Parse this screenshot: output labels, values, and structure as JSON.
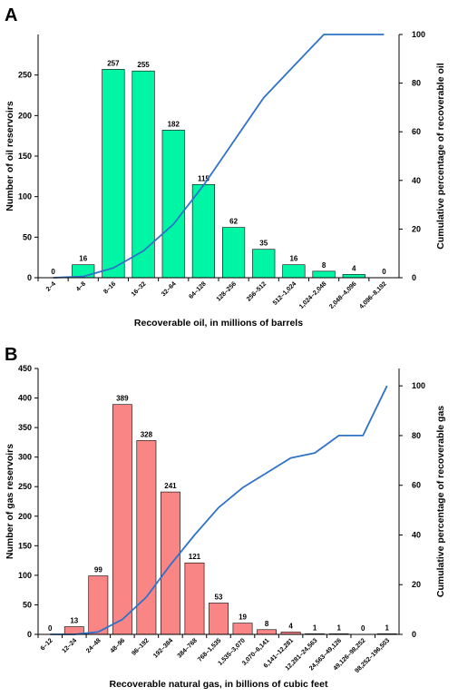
{
  "colors": {
    "bar_a": "#00f5a5",
    "bar_b": "#fa8585",
    "line": "#2f72c8",
    "axis": "#000000"
  },
  "chart_data": [
    {
      "type": "bar",
      "panel_letter": "A",
      "categories": [
        "2–4",
        "4–8",
        "8–16",
        "16–32",
        "32–64",
        "64–128",
        "128–256",
        "256–512",
        "512–1,024",
        "1,024–2,048",
        "2,048–4,096",
        "4,096–8,192"
      ],
      "values": [
        0,
        16,
        257,
        255,
        182,
        115,
        62,
        35,
        16,
        8,
        4,
        0
      ],
      "data_labels": [
        "0",
        "16",
        "257",
        "255",
        "182",
        "115",
        "62",
        "35",
        "16",
        "8",
        "4",
        "0"
      ],
      "cumulative": [
        0,
        0.5,
        4,
        11,
        22,
        38,
        56,
        74,
        87,
        100,
        100,
        100
      ],
      "xlabel": "Recoverable oil, in millions of barrels",
      "ylabel": "Number of oil reservoirs",
      "y2label": "Cumulative percentage of recoverable oil",
      "ylim": [
        0,
        300
      ],
      "yticks": [
        "0",
        "50",
        "100",
        "150",
        "200",
        "250"
      ],
      "y2lim": [
        0,
        100
      ],
      "y2ticks": [
        "0",
        "20",
        "40",
        "60",
        "80",
        "100"
      ],
      "grid": false
    },
    {
      "type": "bar",
      "panel_letter": "B",
      "categories": [
        "6–12",
        "12–24",
        "24–48",
        "48–96",
        "96–192",
        "192–384",
        "384–768",
        "768–1,535",
        "1,535–3,070",
        "3,070–6,141",
        "6,141–12,281",
        "12,281–24,563",
        "24,563–49,126",
        "49,126–98,252",
        "98,252–196,503"
      ],
      "values": [
        0,
        13,
        99,
        389,
        328,
        241,
        121,
        53,
        19,
        8,
        4,
        1,
        1,
        0,
        1
      ],
      "data_labels": [
        "0",
        "13",
        "99",
        "389",
        "328",
        "241",
        "121",
        "53",
        "19",
        "8",
        "4",
        "1",
        "1",
        "0",
        "1"
      ],
      "cumulative": [
        0,
        0,
        1,
        6,
        15,
        28,
        40,
        51,
        59,
        65,
        71,
        73,
        80,
        80,
        100
      ],
      "xlabel": "Recoverable natural gas, in billions of cubic feet",
      "ylabel": "Number of gas reservoirs",
      "y2label": "Cumulative percentage of recoverable gas",
      "ylim": [
        0,
        450
      ],
      "yticks": [
        "0",
        "50",
        "100",
        "150",
        "200",
        "250",
        "300",
        "350",
        "400",
        "450"
      ],
      "y2lim": [
        0,
        107
      ],
      "y2ticks": [
        "0",
        "20",
        "40",
        "60",
        "80",
        "100"
      ],
      "grid": false
    }
  ]
}
